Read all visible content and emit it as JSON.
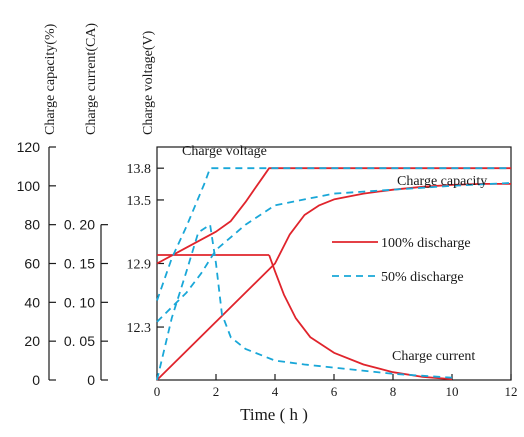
{
  "chart_data": {
    "type": "line",
    "title": "",
    "xlabel": "Time ( h )",
    "x_ticks": [
      0,
      2,
      4,
      6,
      8,
      10,
      12
    ],
    "xlim": [
      0,
      12
    ],
    "axes": {
      "capacity": {
        "label": "Charge capacity(%)",
        "ticks": [
          0,
          20,
          40,
          60,
          80,
          100,
          120
        ],
        "range": [
          0,
          120
        ]
      },
      "current": {
        "label": "Charge current(CA)",
        "ticks": [
          "0",
          "0. 05",
          "0. 10",
          "0. 15",
          "0. 20"
        ],
        "range": [
          0,
          0.2
        ]
      },
      "voltage": {
        "label": "Charge voltage(V)",
        "ticks": [
          "12.3",
          "12.9",
          "13.5",
          "13.8"
        ],
        "range": [
          11.8,
          14.0
        ]
      }
    },
    "legend": [
      {
        "name": "100% discharge",
        "style": "solid",
        "color": "#e0242c"
      },
      {
        "name": "50% discharge",
        "style": "dashed",
        "color": "#19a7d8"
      }
    ],
    "annotations": {
      "voltage": "Charge voltage",
      "capacity": "Charge capacity",
      "current": "Charge current"
    },
    "series": [
      {
        "group": "100% discharge",
        "measure": "voltage",
        "x": [
          0,
          1,
          2,
          2.5,
          3,
          3.3,
          3.6,
          3.8,
          12
        ],
        "y": [
          12.9,
          13.05,
          13.2,
          13.3,
          13.48,
          13.6,
          13.72,
          13.8,
          13.8
        ]
      },
      {
        "group": "100% discharge",
        "measure": "current",
        "x": [
          0,
          3.8,
          3.8
        ],
        "y": [
          0.161,
          0.161,
          0.161
        ]
      },
      {
        "group": "100% discharge",
        "measure": "current",
        "x": [
          3.8,
          4.0,
          4.3,
          4.7,
          5.2,
          6,
          7,
          8,
          9,
          10
        ],
        "y": [
          0.161,
          0.14,
          0.11,
          0.08,
          0.055,
          0.035,
          0.02,
          0.01,
          0.004,
          0.001
        ]
      },
      {
        "group": "100% discharge",
        "measure": "capacity",
        "x": [
          0,
          4.0,
          4.5,
          5,
          5.5,
          6,
          7,
          8,
          9,
          10,
          11,
          12
        ],
        "y": [
          0,
          60,
          75,
          85,
          90,
          93,
          96,
          98,
          99.5,
          100.5,
          101,
          101
        ]
      },
      {
        "group": "50% discharge",
        "measure": "voltage",
        "x": [
          0,
          0.5,
          1,
          1.3,
          1.6,
          1.8,
          12
        ],
        "y": [
          12.55,
          12.95,
          13.25,
          13.45,
          13.65,
          13.8,
          13.8
        ]
      },
      {
        "group": "50% discharge",
        "measure": "current",
        "x": [
          0,
          0.5,
          1,
          1.4,
          1.8,
          1.8,
          2,
          2.2,
          2.5,
          3,
          4,
          5,
          6,
          8,
          10
        ],
        "y": [
          0,
          0.08,
          0.14,
          0.19,
          0.2,
          0.2,
          0.15,
          0.085,
          0.055,
          0.04,
          0.025,
          0.02,
          0.016,
          0.008,
          0.003
        ]
      },
      {
        "group": "50% discharge",
        "measure": "capacity",
        "x": [
          0,
          1,
          1.5,
          2,
          3,
          4,
          5,
          6,
          8,
          10,
          12
        ],
        "y": [
          30,
          45,
          55,
          67,
          80,
          90,
          93,
          96,
          98,
          100,
          101.5
        ]
      }
    ]
  }
}
